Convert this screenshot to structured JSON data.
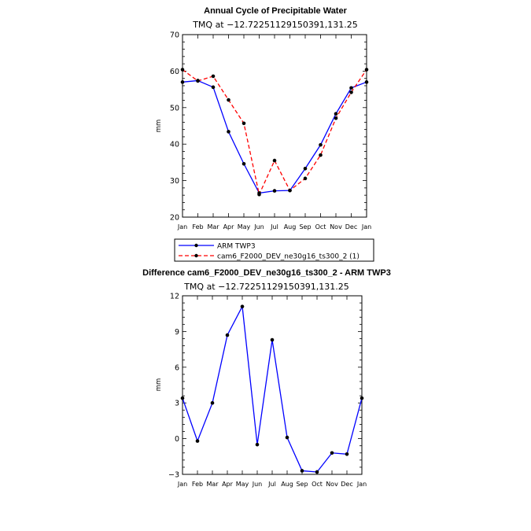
{
  "chart_data": [
    {
      "type": "line",
      "title": "Annual Cycle of Precipitable Water",
      "subtitle": "TMQ at −12.72251129150391,131.25",
      "xlabel": "",
      "ylabel": "mm",
      "categories": [
        "Jan",
        "Feb",
        "Mar",
        "Apr",
        "May",
        "Jun",
        "Jul",
        "Aug",
        "Sep",
        "Oct",
        "Nov",
        "Dec",
        "Jan"
      ],
      "ylim": [
        20,
        70
      ],
      "yticks": [
        20,
        30,
        40,
        50,
        60,
        70
      ],
      "ytick_labels": [
        "20",
        "30",
        "40",
        "50",
        "60",
        "70"
      ],
      "series": [
        {
          "name": "ARM TWP3",
          "color": "#0000ff",
          "style": "solid",
          "values": [
            57.0,
            57.4,
            55.6,
            43.4,
            34.6,
            26.6,
            27.2,
            27.3,
            33.3,
            39.8,
            48.3,
            55.4,
            57.0
          ]
        },
        {
          "name": "cam6_F2000_DEV_ne30g16_ts300_2 (1)",
          "color": "#ff0000",
          "style": "dashed",
          "values": [
            60.4,
            57.3,
            58.6,
            52.1,
            45.7,
            26.2,
            35.5,
            27.3,
            30.6,
            37.0,
            47.1,
            54.2,
            60.4
          ]
        }
      ],
      "legend_position": "below"
    },
    {
      "type": "line",
      "title": "Difference cam6_F2000_DEV_ne30g16_ts300_2 - ARM TWP3",
      "subtitle": "TMQ at −12.72251129150391,131.25",
      "xlabel": "",
      "ylabel": "mm",
      "categories": [
        "Jan",
        "Feb",
        "Mar",
        "Apr",
        "May",
        "Jun",
        "Jul",
        "Aug",
        "Sep",
        "Oct",
        "Nov",
        "Dec",
        "Jan"
      ],
      "ylim": [
        -3,
        12
      ],
      "yticks": [
        -3,
        0,
        3,
        6,
        9,
        12
      ],
      "ytick_labels": [
        "−3",
        "0",
        "3",
        "6",
        "9",
        "12"
      ],
      "series": [
        {
          "name": "Difference",
          "color": "#0000ff",
          "style": "solid",
          "values": [
            3.4,
            -0.2,
            3.0,
            8.7,
            11.1,
            -0.5,
            8.3,
            0.1,
            -2.7,
            -2.8,
            -1.2,
            -1.3,
            3.4
          ]
        }
      ]
    }
  ]
}
